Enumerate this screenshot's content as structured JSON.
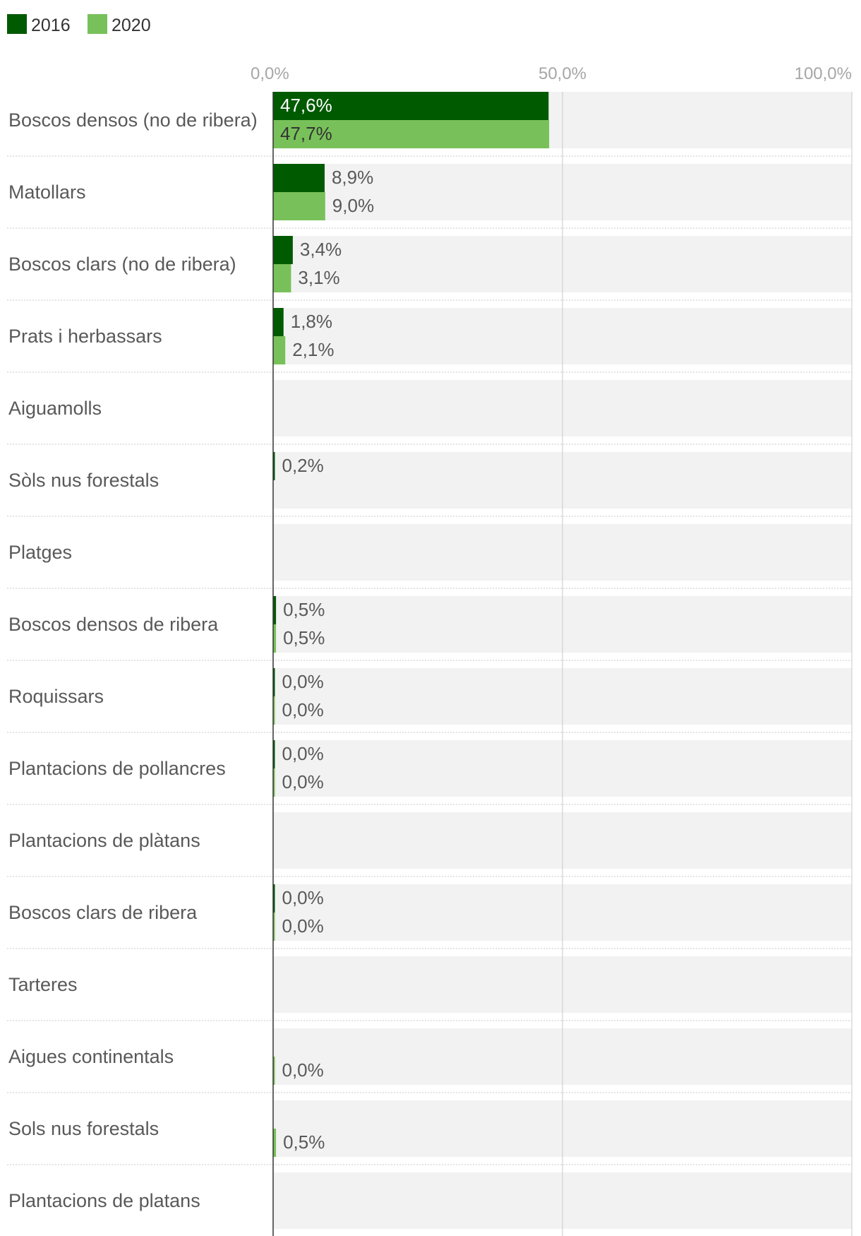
{
  "chart_data": {
    "type": "bar",
    "orientation": "horizontal",
    "legend_position": "top-left",
    "grid": true,
    "xlim": [
      0,
      100
    ],
    "x_ticks": [
      "0,0%",
      "50,0%",
      "100,0%"
    ],
    "categories": [
      "Boscos densos (no de ribera)",
      "Matollars",
      "Boscos clars (no de ribera)",
      "Prats i herbassars",
      "Aiguamolls",
      "Sòls nus forestals",
      "Platges",
      "Boscos densos de ribera",
      "Roquissars",
      "Plantacions de pollancres",
      "Plantacions de plàtans",
      "Boscos clars de ribera",
      "Tarteres",
      "Aigues continentals",
      "Sols nus forestals",
      "Plantacions de platans"
    ],
    "series": [
      {
        "name": "2016",
        "color": "#005a00",
        "values": [
          47.6,
          8.9,
          3.4,
          1.8,
          null,
          0.2,
          null,
          0.5,
          0.0,
          0.0,
          null,
          0.0,
          null,
          null,
          null,
          null
        ],
        "labels": [
          "47,6%",
          "8,9%",
          "3,4%",
          "1,8%",
          "",
          "0,2%",
          "",
          "0,5%",
          "0,0%",
          "0,0%",
          "",
          "0,0%",
          "",
          "",
          "",
          ""
        ]
      },
      {
        "name": "2020",
        "color": "#78c15a",
        "values": [
          47.7,
          9.0,
          3.1,
          2.1,
          null,
          null,
          null,
          0.5,
          0.0,
          0.0,
          null,
          0.0,
          null,
          0.0,
          0.5,
          null
        ],
        "labels": [
          "47,7%",
          "9,0%",
          "3,1%",
          "2,1%",
          "",
          "",
          "",
          "0,5%",
          "0,0%",
          "0,0%",
          "",
          "0,0%",
          "",
          "0,0%",
          "0,5%",
          ""
        ]
      }
    ]
  }
}
